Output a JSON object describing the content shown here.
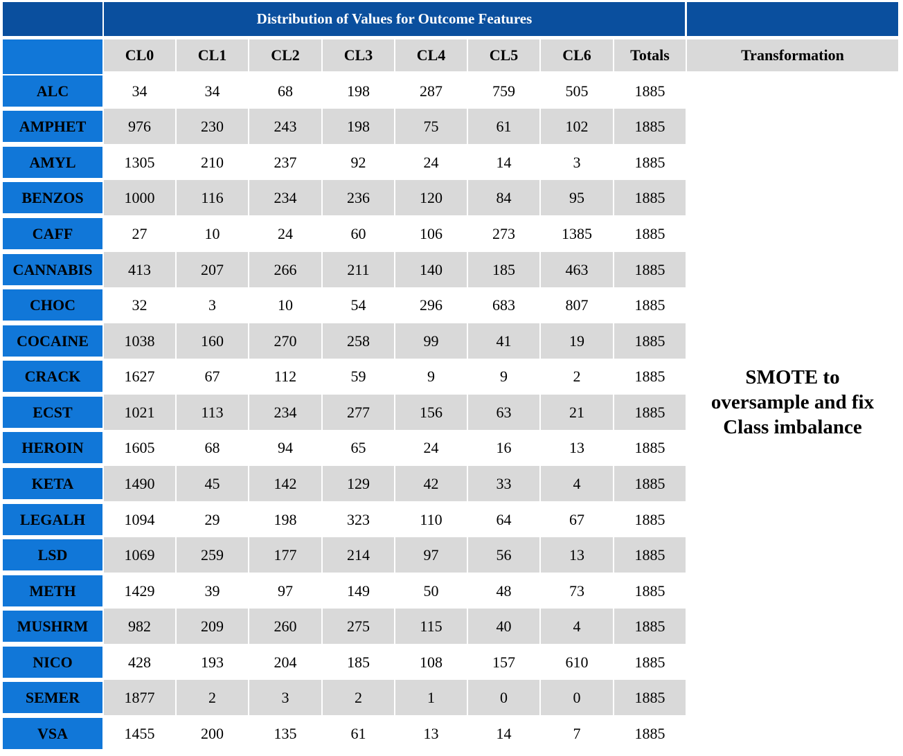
{
  "title": "Distribution of Values for Outcome Features",
  "columns": [
    "CL0",
    "CL1",
    "CL2",
    "CL3",
    "CL4",
    "CL5",
    "CL6",
    "Totals"
  ],
  "transformation_header": "Transformation",
  "transformation_text": "SMOTE to oversample and fix Class imbalance",
  "rows": [
    {
      "label": "ALC",
      "values": [
        "34",
        "34",
        "68",
        "198",
        "287",
        "759",
        "505",
        "1885"
      ]
    },
    {
      "label": "AMPHET",
      "values": [
        "976",
        "230",
        "243",
        "198",
        "75",
        "61",
        "102",
        "1885"
      ]
    },
    {
      "label": "AMYL",
      "values": [
        "1305",
        "210",
        "237",
        "92",
        "24",
        "14",
        "3",
        "1885"
      ]
    },
    {
      "label": "BENZOS",
      "values": [
        "1000",
        "116",
        "234",
        "236",
        "120",
        "84",
        "95",
        "1885"
      ]
    },
    {
      "label": "CAFF",
      "values": [
        "27",
        "10",
        "24",
        "60",
        "106",
        "273",
        "1385",
        "1885"
      ]
    },
    {
      "label": "CANNABIS",
      "values": [
        "413",
        "207",
        "266",
        "211",
        "140",
        "185",
        "463",
        "1885"
      ]
    },
    {
      "label": "CHOC",
      "values": [
        "32",
        "3",
        "10",
        "54",
        "296",
        "683",
        "807",
        "1885"
      ]
    },
    {
      "label": "COCAINE",
      "values": [
        "1038",
        "160",
        "270",
        "258",
        "99",
        "41",
        "19",
        "1885"
      ]
    },
    {
      "label": "CRACK",
      "values": [
        "1627",
        "67",
        "112",
        "59",
        "9",
        "9",
        "2",
        "1885"
      ]
    },
    {
      "label": "ECST",
      "values": [
        "1021",
        "113",
        "234",
        "277",
        "156",
        "63",
        "21",
        "1885"
      ]
    },
    {
      "label": "HEROIN",
      "values": [
        "1605",
        "68",
        "94",
        "65",
        "24",
        "16",
        "13",
        "1885"
      ]
    },
    {
      "label": "KETA",
      "values": [
        "1490",
        "45",
        "142",
        "129",
        "42",
        "33",
        "4",
        "1885"
      ]
    },
    {
      "label": "LEGALH",
      "values": [
        "1094",
        "29",
        "198",
        "323",
        "110",
        "64",
        "67",
        "1885"
      ]
    },
    {
      "label": "LSD",
      "values": [
        "1069",
        "259",
        "177",
        "214",
        "97",
        "56",
        "13",
        "1885"
      ]
    },
    {
      "label": "METH",
      "values": [
        "1429",
        "39",
        "97",
        "149",
        "50",
        "48",
        "73",
        "1885"
      ]
    },
    {
      "label": "MUSHRM",
      "values": [
        "982",
        "209",
        "260",
        "275",
        "115",
        "40",
        "4",
        "1885"
      ]
    },
    {
      "label": "NICO",
      "values": [
        "428",
        "193",
        "204",
        "185",
        "108",
        "157",
        "610",
        "1885"
      ]
    },
    {
      "label": "SEMER",
      "values": [
        "1877",
        "2",
        "3",
        "2",
        "1",
        "0",
        "0",
        "1885"
      ]
    },
    {
      "label": "VSA",
      "values": [
        "1455",
        "200",
        "135",
        "61",
        "13",
        "14",
        "7",
        "1885"
      ]
    }
  ]
}
